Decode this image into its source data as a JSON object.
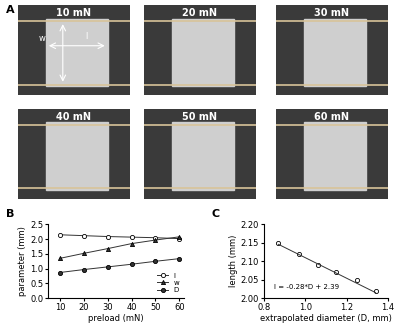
{
  "chart_data": [
    {
      "type": "image_grid",
      "panel_label": "A",
      "images": [
        "10 mN",
        "20 mN",
        "30 mN",
        "40 mN",
        "50 mN",
        "60 mN"
      ],
      "arrow_labels": [
        "w",
        "l"
      ]
    },
    {
      "type": "line",
      "panel_label": "B",
      "x_label": "preload (mN)",
      "y_label": "parameter (mm)",
      "x": [
        10,
        20,
        30,
        40,
        50,
        60
      ],
      "series": [
        {
          "name": "l",
          "color": "#333333",
          "marker": "circle_open",
          "values": [
            2.15,
            2.12,
            2.09,
            2.07,
            2.05,
            2.02
          ]
        },
        {
          "name": "w",
          "color": "#333333",
          "marker": "triangle",
          "values": [
            1.35,
            1.52,
            1.68,
            1.85,
            1.97,
            2.08
          ]
        },
        {
          "name": "D",
          "color": "#333333",
          "marker": "circle",
          "values": [
            0.87,
            0.97,
            1.06,
            1.15,
            1.25,
            1.34
          ]
        }
      ],
      "xlim": [
        5,
        62
      ],
      "xticks": [
        10,
        20,
        30,
        40,
        50,
        60
      ],
      "ylim": [
        0.0,
        2.5
      ],
      "yticks": [
        {
          "value": 0.0,
          "label": "0.0"
        },
        {
          "value": 0.5,
          "label": "0.5"
        },
        {
          "value": 1.0,
          "label": "1.0"
        },
        {
          "value": 1.5,
          "label": "1.5"
        },
        {
          "value": 2.0,
          "label": "2.0"
        },
        {
          "value": 2.5,
          "label": "2.5"
        }
      ],
      "legend": "lower right"
    },
    {
      "type": "scatter",
      "panel_label": "C",
      "x_label": "extrapolated diameter (D, mm)",
      "y_label": "length (mm)",
      "annotation": "l = -0.28*D + 2.39",
      "series": [
        {
          "type": "scatter",
          "color": "#333333",
          "marker": "circle_open",
          "x": [
            0.87,
            0.97,
            1.06,
            1.15,
            1.25,
            1.34
          ],
          "values": [
            2.15,
            2.12,
            2.09,
            2.07,
            2.05,
            2.02
          ]
        },
        {
          "type": "line",
          "color": "#333333",
          "x": [
            0.87,
            1.34
          ],
          "values": [
            2.146,
            2.015
          ]
        }
      ],
      "xlim": [
        0.8,
        1.4
      ],
      "xticks": [
        {
          "value": 0.8,
          "label": "0.8"
        },
        {
          "value": 1.0,
          "label": "1.0"
        },
        {
          "value": 1.2,
          "label": "1.2"
        },
        {
          "value": 1.4,
          "label": "1.4"
        }
      ],
      "ylim": [
        2.0,
        2.2
      ],
      "yticks": [
        {
          "value": 2.0,
          "label": "2.00"
        },
        {
          "value": 2.05,
          "label": "2.05"
        },
        {
          "value": 2.1,
          "label": "2.10"
        },
        {
          "value": 2.15,
          "label": "2.15"
        },
        {
          "value": 2.2,
          "label": "2.20"
        }
      ]
    }
  ]
}
